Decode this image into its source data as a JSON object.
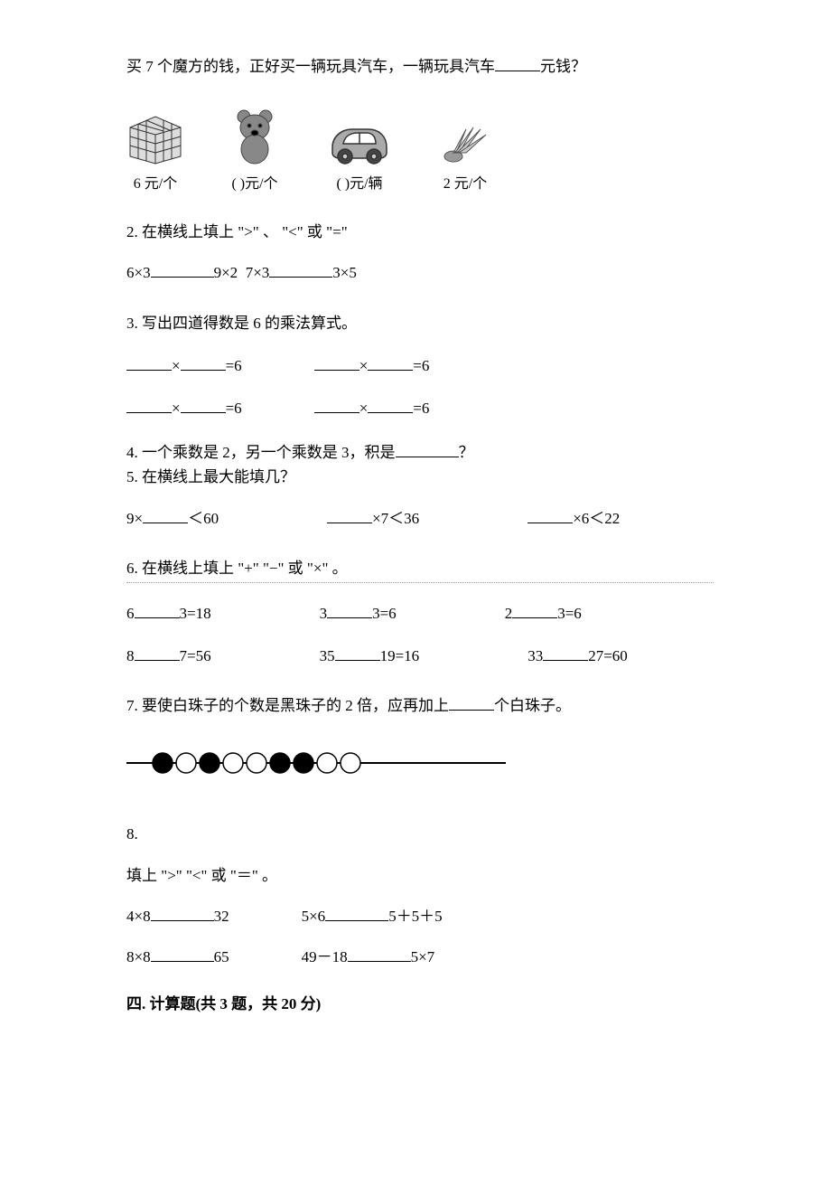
{
  "q1": {
    "prompt_1": "买 7 个魔方的钱，正好买一辆玩具汽车，一辆玩具汽车",
    "prompt_2": "元钱？",
    "items": [
      {
        "label_before": "6",
        "label_after": " 元/个"
      },
      {
        "label_before": "(   )",
        "label_after": "元/个"
      },
      {
        "label_before": "(   )",
        "label_after": "元/辆"
      },
      {
        "label_before": "2",
        "label_after": " 元/个"
      }
    ]
  },
  "q2": {
    "title": "2. 在横线上填上 \">\" 、 \"<\" 或 \"=\"",
    "expr1_left": "6×3",
    "expr1_right": "9×2",
    "expr2_left": "7×3",
    "expr2_right": "3×5"
  },
  "q3": {
    "title": "3. 写出四道得数是 6 的乘法算式。",
    "eq_suffix": "=6"
  },
  "q4": {
    "title_1": "4. 一个乘数是 2，另一个乘数是 3，积是",
    "title_2": "？"
  },
  "q5": {
    "title": "5. 在横线上最大能填几？",
    "e1_left": "9×",
    "e1_right": "＜60",
    "e2_right": "×7＜36",
    "e3_right": "×6＜22"
  },
  "q6": {
    "title": "6. 在横线上填上 \"+\" \"−\" 或 \"×\" 。",
    "row1": [
      {
        "l": "6",
        "r": "3=18"
      },
      {
        "l": "3",
        "r": "3=6"
      },
      {
        "l": "2",
        "r": "3=6"
      }
    ],
    "row2": [
      {
        "l": "8",
        "r": "7=56"
      },
      {
        "l": "35",
        "r": "19=16"
      },
      {
        "l": "33",
        "r": "27=60"
      }
    ]
  },
  "q7": {
    "t1": "7. 要使白珠子的个数是黑珠子的 2 倍，应再加上",
    "t2": "个白珠子。",
    "beads": [
      "b",
      "w",
      "b",
      "w",
      "w",
      "b",
      "b",
      "w",
      "w"
    ],
    "colors": {
      "black": "#000000",
      "white": "#ffffff",
      "stroke": "#000000"
    }
  },
  "q8": {
    "num": "8.",
    "title": "填上 \">\" \"<\" 或 \"＝\" 。",
    "row1": [
      {
        "l": "4×8",
        "r": "32"
      },
      {
        "l": "5×6",
        "r": "5＋5＋5"
      }
    ],
    "row2": [
      {
        "l": "8×8",
        "r": "65"
      },
      {
        "l": "49－18",
        "r": "5×7"
      }
    ]
  },
  "section4": {
    "title": "四. 计算题(共 3 题，共 20 分)"
  },
  "svg": {
    "cube_colors": {
      "grid": "#333",
      "fill1": "#bbb",
      "fill2": "#eee"
    },
    "bear_color": "#777",
    "car_color": "#555",
    "shuttle_color": "#888"
  }
}
